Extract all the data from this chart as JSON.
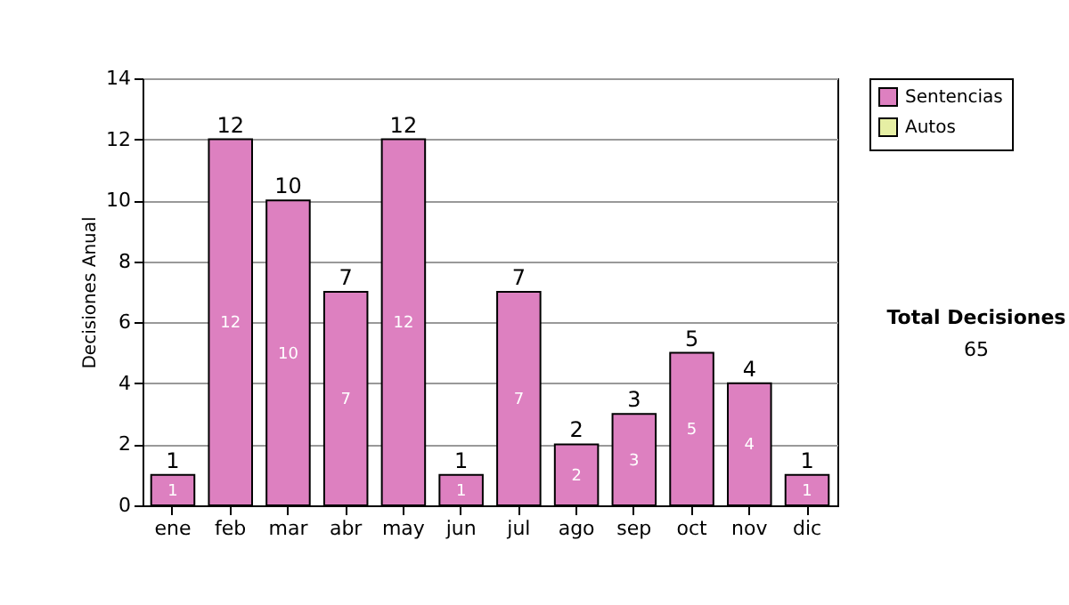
{
  "chart_data": {
    "type": "bar",
    "ylabel": "Decisiones Anual",
    "categories": [
      "ene",
      "feb",
      "mar",
      "abr",
      "may",
      "jun",
      "jul",
      "ago",
      "sep",
      "oct",
      "nov",
      "dic"
    ],
    "series": [
      {
        "name": "Sentencias",
        "color": "#dd80c0",
        "values": [
          1,
          12,
          10,
          7,
          12,
          1,
          7,
          2,
          3,
          5,
          4,
          1
        ]
      },
      {
        "name": "Autos",
        "color": "#e6efa4",
        "values": [
          null,
          null,
          null,
          null,
          null,
          null,
          null,
          null,
          null,
          null,
          null,
          null
        ]
      }
    ],
    "data_labels": true,
    "totals": [
      "1",
      "12",
      "10",
      "7",
      "12",
      "1",
      "7",
      "2",
      "3",
      "5",
      "4",
      "1"
    ],
    "ylim": [
      0,
      14
    ],
    "yticks": [
      0,
      2,
      4,
      6,
      8,
      10,
      12,
      14
    ],
    "grid": "y",
    "legend": "right",
    "annotations": [
      "Total Decisiones",
      "65"
    ]
  }
}
